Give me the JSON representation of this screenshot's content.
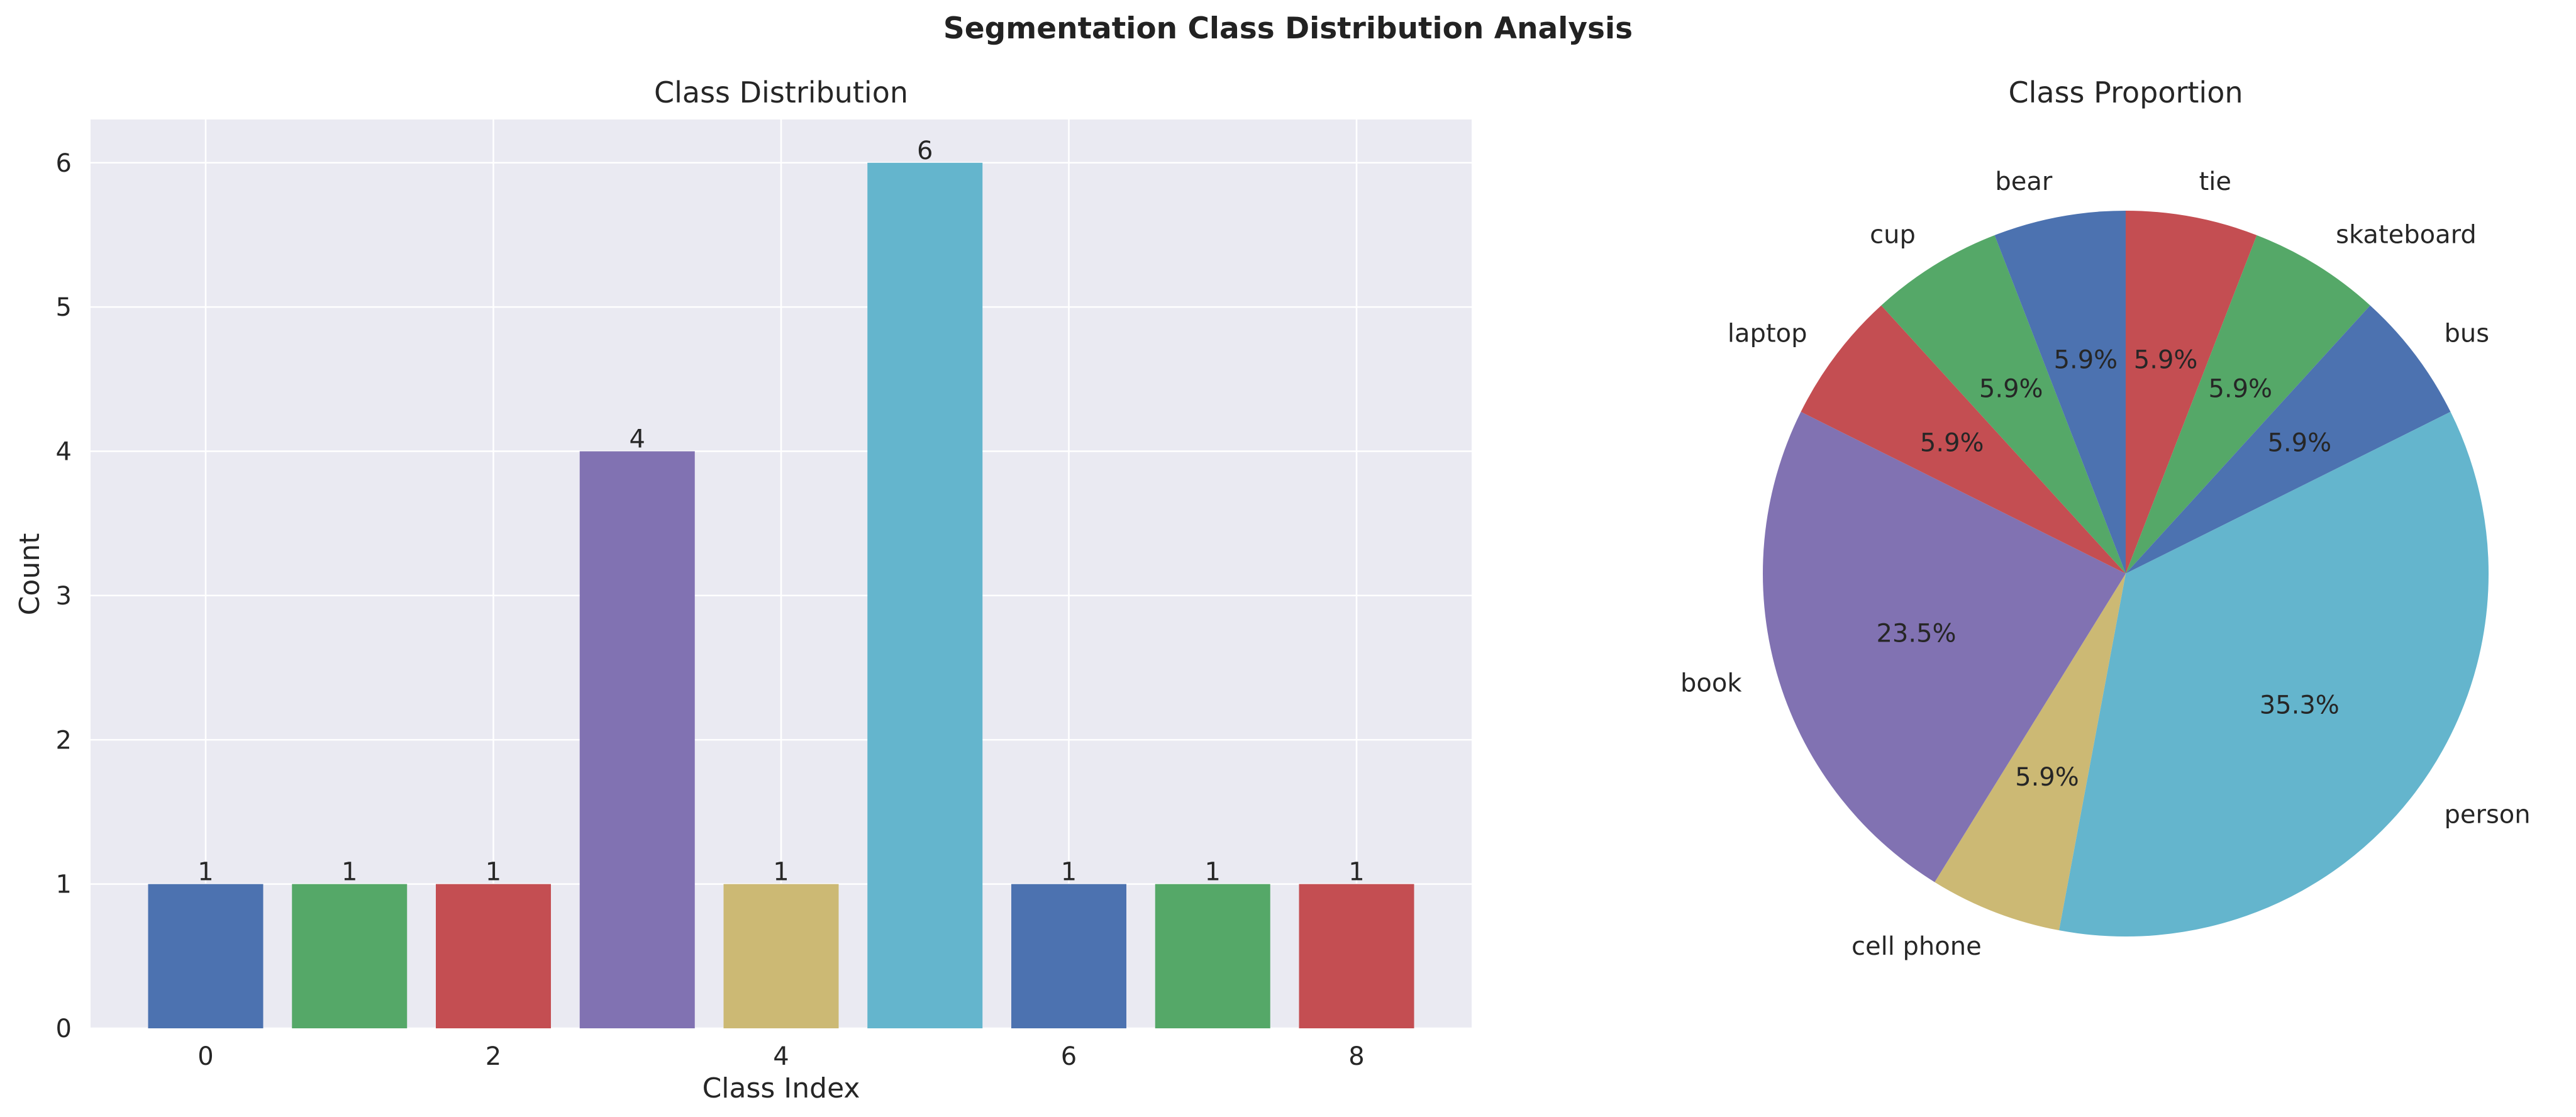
{
  "figure": {
    "title": "Segmentation Class Distribution Analysis"
  },
  "chart_data": [
    {
      "type": "bar",
      "title": "Class Distribution",
      "xlabel": "Class Index",
      "ylabel": "Count",
      "x": [
        0,
        1,
        2,
        3,
        4,
        5,
        6,
        7,
        8
      ],
      "values": [
        1,
        1,
        1,
        4,
        1,
        6,
        1,
        1,
        1
      ],
      "data_labels": [
        "1",
        "1",
        "1",
        "4",
        "1",
        "6",
        "1",
        "1",
        "1"
      ],
      "xticks": [
        0,
        2,
        4,
        6,
        8
      ],
      "yticks": [
        0,
        1,
        2,
        3,
        4,
        5,
        6
      ],
      "xlim": [
        -0.8,
        8.8
      ],
      "ylim": [
        0,
        6.3
      ],
      "grid": true,
      "colors": [
        "#4c72b0",
        "#55a868",
        "#c44e52",
        "#8172b2",
        "#ccb974",
        "#64b5cd",
        "#4c72b0",
        "#55a868",
        "#c44e52"
      ],
      "background": "#eaeaf2"
    },
    {
      "type": "pie",
      "title": "Class Proportion",
      "categories": [
        "tie",
        "skateboard",
        "bus",
        "person",
        "cell phone",
        "book",
        "laptop",
        "cup",
        "bear"
      ],
      "values": [
        1,
        1,
        1,
        6,
        1,
        4,
        1,
        1,
        1
      ],
      "percent_labels": [
        "5.9%",
        "5.9%",
        "5.9%",
        "35.3%",
        "5.9%",
        "23.5%",
        "5.9%",
        "5.9%",
        "5.9%"
      ],
      "start_angle": 90,
      "direction": "clockwise",
      "colors": [
        "#c44e52",
        "#55a868",
        "#4c72b0",
        "#64b5cd",
        "#ccb974",
        "#8172b2",
        "#c44e52",
        "#55a868",
        "#4c72b0"
      ]
    }
  ]
}
